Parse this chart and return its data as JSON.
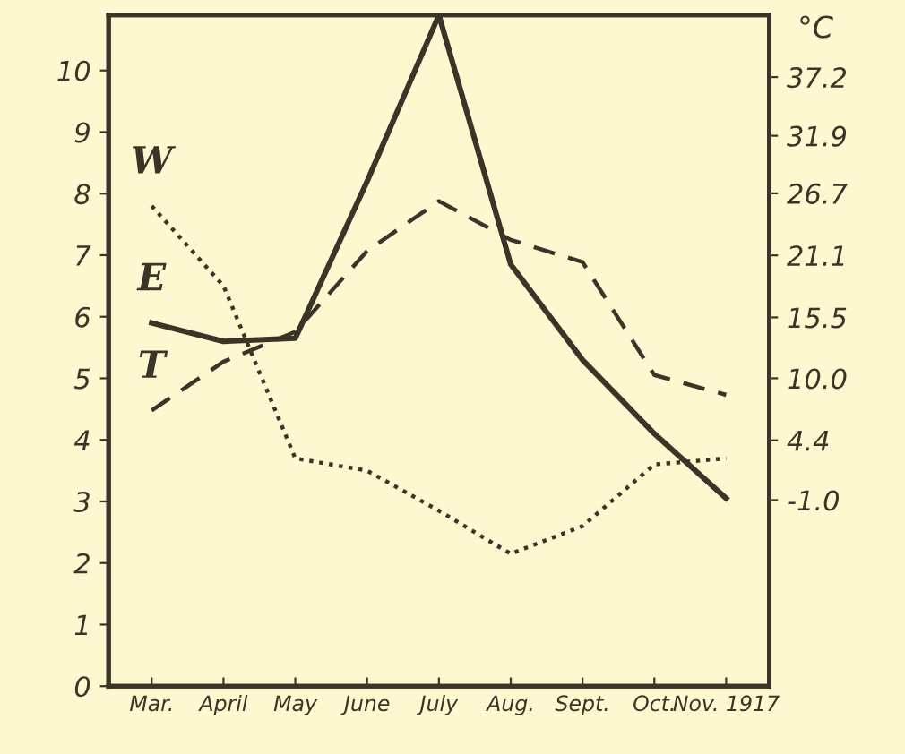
{
  "chart_data": {
    "type": "line",
    "categories": [
      "Mar.",
      "April",
      "May",
      "June",
      "July",
      "Aug.",
      "Sept.",
      "Oct.",
      "Nov. 1917"
    ],
    "series": [
      {
        "name": "W",
        "color": "#3a3526",
        "line_style": "dotted",
        "values": [
          7.8,
          6.5,
          3.7,
          3.5,
          2.85,
          2.15,
          2.6,
          3.6,
          3.7
        ]
      },
      {
        "name": "E",
        "color": "#3a3526",
        "line_style": "solid",
        "values": [
          5.9,
          5.6,
          5.65,
          8.2,
          10.9,
          6.85,
          5.3,
          4.1,
          3.05
        ]
      },
      {
        "name": "T",
        "color": "#3a3526",
        "line_style": "dashed",
        "axis": "y2",
        "values": [
          7.1,
          11.5,
          14.2,
          21.5,
          26.0,
          22.5,
          20.5,
          10.3,
          8.5
        ]
      }
    ],
    "ylim": [
      0,
      10.9
    ],
    "yticks": [
      0,
      1,
      2,
      3,
      4,
      5,
      6,
      7,
      8,
      9,
      10
    ],
    "y2label": "°C",
    "y2lim": [
      -17.8,
      42.8
    ],
    "y2ticks": [
      {
        "value": -1.0,
        "label": "-1.0"
      },
      4.4,
      {
        "value": 10.0,
        "label": "10.0"
      },
      15.5,
      21.1,
      26.7,
      31.9,
      37.2
    ],
    "grid": false,
    "legend": false,
    "marker": "none"
  }
}
